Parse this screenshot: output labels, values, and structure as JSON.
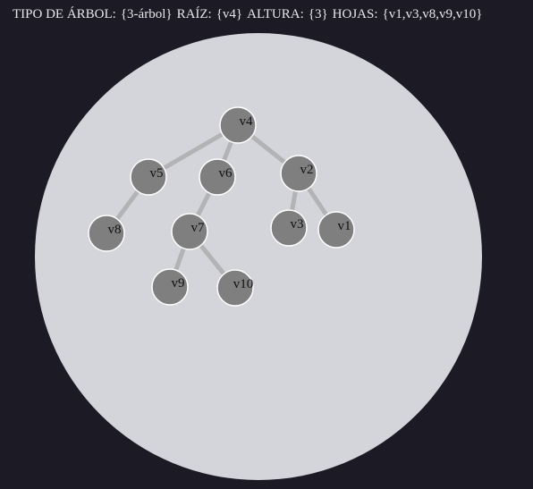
{
  "header": {
    "tree_type_label": "TIPO DE ÁRBOL:",
    "tree_type_value": "{3-árbol}",
    "root_label": "RAÍZ:",
    "root_value": "{v4}",
    "height_label": "ALTURA:",
    "height_value": "{3}",
    "leaves_label": "HOJAS:",
    "leaves_value": "{v1,v3,v8,v9,v10}"
  },
  "colors": {
    "background": "#1c1b25",
    "circle": "#d4d5da",
    "node_fill": "#7f7f7f",
    "node_stroke": "#ffffff",
    "edge": "#b3b3b5",
    "header_text": "#e6e6ea"
  },
  "tree": {
    "nodes": [
      {
        "id": "v4",
        "label": "v4"
      },
      {
        "id": "v5",
        "label": "v5"
      },
      {
        "id": "v6",
        "label": "v6"
      },
      {
        "id": "v2",
        "label": "v2"
      },
      {
        "id": "v8",
        "label": "v8"
      },
      {
        "id": "v7",
        "label": "v7"
      },
      {
        "id": "v3",
        "label": "v3"
      },
      {
        "id": "v1",
        "label": "v1"
      },
      {
        "id": "v9",
        "label": "v9"
      },
      {
        "id": "v10",
        "label": "v10"
      }
    ],
    "edges": [
      [
        "v4",
        "v5"
      ],
      [
        "v4",
        "v6"
      ],
      [
        "v4",
        "v2"
      ],
      [
        "v5",
        "v8"
      ],
      [
        "v6",
        "v7"
      ],
      [
        "v2",
        "v3"
      ],
      [
        "v2",
        "v1"
      ],
      [
        "v7",
        "v9"
      ],
      [
        "v7",
        "v10"
      ]
    ]
  }
}
